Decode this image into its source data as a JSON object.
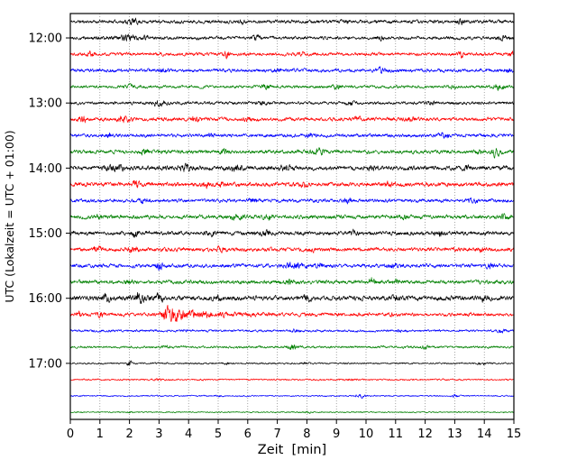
{
  "figure": {
    "xlabel": "Zeit  [min]",
    "ylabel": "UTC (Lokalzeit = UTC + 01:00)"
  },
  "chart_data": {
    "type": "line",
    "subtype": "seismogram-dayplot",
    "title": "",
    "xlabel": "Zeit  [min]",
    "ylabel": "UTC (Lokalzeit = UTC + 01:00)",
    "xlim": [
      0,
      15
    ],
    "x_ticks": [
      "0",
      "1",
      "2",
      "3",
      "4",
      "5",
      "6",
      "7",
      "8",
      "9",
      "10",
      "11",
      "12",
      "13",
      "14",
      "15"
    ],
    "y_tick_labels": [
      "12:00",
      "13:00",
      "14:00",
      "15:00",
      "16:00",
      "17:00"
    ],
    "minutes_per_line": 15,
    "grid": {
      "vertical_dotted": true,
      "color": "#808080"
    },
    "color_cycle": [
      "#000000",
      "#ff0000",
      "#0000ff",
      "#008000"
    ],
    "traces": [
      {
        "time": "11:45",
        "tick_label": null,
        "color": "#000000",
        "base_amp": 2.6,
        "events": [
          [
            2.1,
            3.5,
            0.15
          ],
          [
            5.8,
            2,
            0.1
          ],
          [
            9.3,
            2.5,
            0.1
          ],
          [
            13.2,
            2.5,
            0.12
          ]
        ]
      },
      {
        "time": "12:00",
        "tick_label": "12:00",
        "color": "#000000",
        "base_amp": 2.5,
        "events": [
          [
            1.9,
            4.5,
            0.22
          ],
          [
            2.5,
            3,
            0.1
          ],
          [
            6.3,
            2.2,
            0.1
          ],
          [
            10.5,
            2,
            0.1
          ],
          [
            14.6,
            2.8,
            0.15
          ]
        ]
      },
      {
        "time": "12:15",
        "tick_label": null,
        "color": "#ff0000",
        "base_amp": 2.5,
        "events": [
          [
            0.7,
            2.8,
            0.1
          ],
          [
            5.3,
            5.5,
            0.06
          ],
          [
            7.8,
            2.3,
            0.1
          ],
          [
            13.2,
            5.5,
            0.06
          ],
          [
            14.9,
            2.8,
            0.08
          ]
        ]
      },
      {
        "time": "12:30",
        "tick_label": null,
        "color": "#0000ff",
        "base_amp": 2.7,
        "events": [
          [
            3.1,
            2.3,
            0.1
          ],
          [
            7.0,
            2,
            0.1
          ],
          [
            10.5,
            2.3,
            0.12
          ],
          [
            14.8,
            2.8,
            0.1
          ]
        ]
      },
      {
        "time": "12:45",
        "tick_label": null,
        "color": "#008000",
        "base_amp": 2.3,
        "events": [
          [
            2.0,
            2,
            0.1
          ],
          [
            6.6,
            3.2,
            0.12
          ],
          [
            9.0,
            2.3,
            0.1
          ],
          [
            12.9,
            2.8,
            0.1
          ],
          [
            14.5,
            3.5,
            0.15
          ]
        ]
      },
      {
        "time": "13:00",
        "tick_label": "13:00",
        "color": "#000000",
        "base_amp": 2.3,
        "events": [
          [
            3.0,
            2.8,
            0.2
          ],
          [
            6.5,
            2.8,
            0.12
          ],
          [
            9.5,
            2.3,
            0.1
          ],
          [
            12.2,
            2.3,
            0.1
          ]
        ]
      },
      {
        "time": "13:15",
        "tick_label": null,
        "color": "#ff0000",
        "base_amp": 2.8,
        "events": [
          [
            0.4,
            3.5,
            0.1
          ],
          [
            1.8,
            3.5,
            0.15
          ],
          [
            4.2,
            3.2,
            0.12
          ],
          [
            6.0,
            2.8,
            0.1
          ],
          [
            9.7,
            2.8,
            0.1
          ],
          [
            11.5,
            2.8,
            0.12
          ]
        ]
      },
      {
        "time": "13:30",
        "tick_label": null,
        "color": "#0000ff",
        "base_amp": 2.7,
        "events": [
          [
            1.3,
            2.8,
            0.1
          ],
          [
            4.8,
            2.8,
            0.1
          ],
          [
            8.1,
            2.3,
            0.1
          ],
          [
            12.6,
            2.8,
            0.12
          ]
        ]
      },
      {
        "time": "13:45",
        "tick_label": null,
        "color": "#008000",
        "base_amp": 2.8,
        "events": [
          [
            2.5,
            2.8,
            0.12
          ],
          [
            5.2,
            2.8,
            0.1
          ],
          [
            8.4,
            3.2,
            0.15
          ],
          [
            13.8,
            3.5,
            0.08
          ],
          [
            14.4,
            5.5,
            0.1
          ]
        ]
      },
      {
        "time": "14:00",
        "tick_label": "14:00",
        "color": "#000000",
        "base_amp": 3.4,
        "events": [
          [
            1.5,
            3.5,
            0.2
          ],
          [
            3.9,
            3.5,
            0.15
          ],
          [
            5.6,
            3.5,
            0.15
          ],
          [
            7.3,
            2.8,
            0.1
          ],
          [
            10.2,
            2.8,
            0.12
          ],
          [
            13.4,
            2.8,
            0.1
          ]
        ]
      },
      {
        "time": "14:15",
        "tick_label": null,
        "color": "#ff0000",
        "base_amp": 3.2,
        "events": [
          [
            2.2,
            5.5,
            0.08
          ],
          [
            4.6,
            4.5,
            0.1
          ],
          [
            5.1,
            3.5,
            0.08
          ],
          [
            7.9,
            2.8,
            0.1
          ],
          [
            10.8,
            2.8,
            0.1
          ]
        ]
      },
      {
        "time": "14:30",
        "tick_label": null,
        "color": "#0000ff",
        "base_amp": 2.7,
        "events": [
          [
            2.5,
            3.5,
            0.1
          ],
          [
            6.2,
            2.8,
            0.1
          ],
          [
            9.4,
            2.8,
            0.1
          ],
          [
            13.6,
            2.8,
            0.1
          ]
        ]
      },
      {
        "time": "14:45",
        "tick_label": null,
        "color": "#008000",
        "base_amp": 3.0,
        "events": [
          [
            1.0,
            2.8,
            0.1
          ],
          [
            5.6,
            3.5,
            0.15
          ],
          [
            6.7,
            3.5,
            0.12
          ],
          [
            11.3,
            2.8,
            0.1
          ],
          [
            14.7,
            3.5,
            0.1
          ]
        ]
      },
      {
        "time": "15:00",
        "tick_label": "15:00",
        "color": "#000000",
        "base_amp": 3.0,
        "events": [
          [
            2.2,
            5.5,
            0.07
          ],
          [
            4.8,
            3.5,
            0.1
          ],
          [
            6.6,
            3.5,
            0.1
          ],
          [
            9.6,
            3.5,
            0.08
          ],
          [
            12.5,
            2.8,
            0.1
          ]
        ]
      },
      {
        "time": "15:15",
        "tick_label": null,
        "color": "#ff0000",
        "base_amp": 3.0,
        "events": [
          [
            0.9,
            3.5,
            0.1
          ],
          [
            2.1,
            3.5,
            0.1
          ],
          [
            5.0,
            3.5,
            0.12
          ],
          [
            8.2,
            2.8,
            0.1
          ],
          [
            13.9,
            2.8,
            0.1
          ]
        ]
      },
      {
        "time": "15:30",
        "tick_label": null,
        "color": "#0000ff",
        "base_amp": 2.9,
        "events": [
          [
            3.0,
            6.5,
            0.07
          ],
          [
            7.6,
            3.5,
            0.2
          ],
          [
            8.4,
            2.8,
            0.1
          ],
          [
            10.9,
            2.8,
            0.1
          ],
          [
            14.2,
            2.8,
            0.1
          ]
        ]
      },
      {
        "time": "15:45",
        "tick_label": null,
        "color": "#008000",
        "base_amp": 2.9,
        "events": [
          [
            2.0,
            2.8,
            0.1
          ],
          [
            7.4,
            3.5,
            0.12
          ],
          [
            10.2,
            6.5,
            0.07
          ],
          [
            11.0,
            2.8,
            0.1
          ]
        ]
      },
      {
        "time": "16:00",
        "tick_label": "16:00",
        "color": "#000000",
        "base_amp": 3.6,
        "events": [
          [
            1.2,
            3.5,
            0.1
          ],
          [
            2.3,
            6.5,
            0.18
          ],
          [
            3.0,
            4.5,
            0.12
          ],
          [
            5.0,
            2.8,
            0.1
          ],
          [
            8.0,
            2.8,
            0.1
          ],
          [
            11.0,
            2.8,
            0.1
          ],
          [
            14.0,
            2.8,
            0.1
          ]
        ]
      },
      {
        "time": "16:15",
        "tick_label": null,
        "color": "#ff0000",
        "base_amp": 2.6,
        "events": [
          [
            0.3,
            3.5,
            0.06
          ],
          [
            1.0,
            3.2,
            0.08
          ],
          [
            3.15,
            11,
            0.08,
            1.1
          ],
          [
            10.8,
            2.3,
            0.08
          ],
          [
            13.5,
            2,
            0.08
          ]
        ]
      },
      {
        "time": "16:30",
        "tick_label": null,
        "color": "#0000ff",
        "base_amp": 1.8,
        "events": [
          [
            4.0,
            1.8,
            0.1
          ],
          [
            7.6,
            2.3,
            0.1
          ],
          [
            11.2,
            1.8,
            0.1
          ],
          [
            14.6,
            2.3,
            0.1
          ]
        ]
      },
      {
        "time": "16:45",
        "tick_label": null,
        "color": "#008000",
        "base_amp": 1.8,
        "events": [
          [
            3.2,
            1.8,
            0.1
          ],
          [
            7.5,
            3.2,
            0.15
          ],
          [
            12.0,
            1.8,
            0.1
          ]
        ]
      },
      {
        "time": "17:00",
        "tick_label": "17:00",
        "color": "#000000",
        "base_amp": 1.3,
        "events": [
          [
            2.0,
            4.5,
            0.05
          ],
          [
            5.3,
            1.8,
            0.07
          ],
          [
            8.0,
            1.4,
            0.1
          ],
          [
            13.9,
            1.8,
            0.1
          ]
        ]
      },
      {
        "time": "17:15",
        "tick_label": null,
        "color": "#ff0000",
        "base_amp": 1.3,
        "events": [
          [
            3.0,
            0.9,
            0.1
          ],
          [
            9.5,
            1.4,
            0.1
          ]
        ]
      },
      {
        "time": "17:30",
        "tick_label": null,
        "color": "#0000ff",
        "base_amp": 1.1,
        "events": [
          [
            5.0,
            0.9,
            0.1
          ],
          [
            9.8,
            2.3,
            0.12
          ],
          [
            13.0,
            1.8,
            0.1
          ]
        ]
      },
      {
        "time": "17:45",
        "tick_label": null,
        "color": "#008000",
        "base_amp": 1.0,
        "events": [
          [
            2.0,
            0.9,
            0.08
          ],
          [
            8.0,
            1.4,
            0.1
          ]
        ]
      }
    ]
  }
}
